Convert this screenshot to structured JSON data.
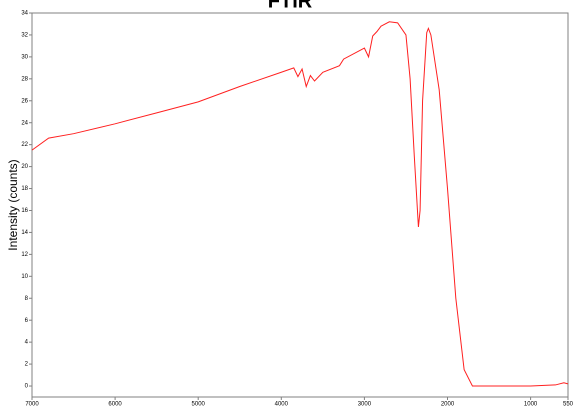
{
  "chart_data": {
    "type": "line",
    "title": "FTIR",
    "ylabel": "Intensity (counts)",
    "x": [
      7000,
      6800,
      6500,
      6000,
      5500,
      5000,
      4500,
      4000,
      3850,
      3800,
      3750,
      3700,
      3650,
      3600,
      3500,
      3300,
      3250,
      3000,
      2950,
      2900,
      2850,
      2800,
      2700,
      2600,
      2500,
      2450,
      2400,
      2350,
      2330,
      2300,
      2250,
      2230,
      2200,
      2100,
      2000,
      1900,
      1800,
      1700,
      1500,
      1000,
      700,
      600,
      550
    ],
    "series": [
      {
        "name": "FTIR",
        "color": "#ff2020",
        "values": [
          21.5,
          22.6,
          23,
          23.9,
          24.9,
          25.9,
          27.3,
          28.6,
          29.0,
          28.2,
          28.9,
          27.3,
          28.3,
          27.8,
          28.6,
          29.2,
          29.8,
          30.8,
          30.0,
          31.9,
          32.3,
          32.8,
          33.2,
          33.1,
          32.0,
          28,
          21,
          14.5,
          16,
          26,
          32.2,
          32.6,
          32,
          27,
          18,
          8,
          1.5,
          0,
          0,
          0,
          0.1,
          0.3,
          0.2
        ]
      }
    ],
    "xlim": [
      7000,
      550
    ],
    "xticks": [
      7000,
      6000,
      5000,
      4000,
      3000,
      2000,
      1000,
      550
    ],
    "ylim": [
      -1,
      34
    ],
    "yticks": [
      0,
      2,
      4,
      6,
      8,
      10,
      12,
      14,
      16,
      18,
      20,
      22,
      24,
      26,
      28,
      30,
      32,
      34
    ]
  }
}
